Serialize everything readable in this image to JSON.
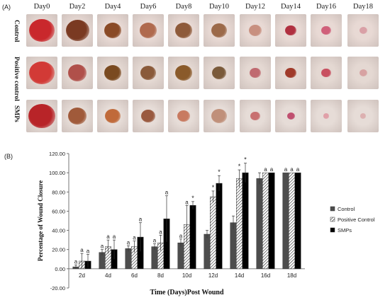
{
  "panel_a": {
    "label": "(A)",
    "days": [
      "Day0",
      "Day2",
      "Day4",
      "Day6",
      "Day8",
      "Day10",
      "Day12",
      "Day14",
      "Day16",
      "Day18"
    ],
    "rows": [
      {
        "label": "Control",
        "skin": "#e8d9d4",
        "wound_colors": [
          "#c9282c",
          "#7a3a22",
          "#8a4a26",
          "#b06a4e",
          "#8e5a3a",
          "#9c6a4a",
          "#c89080",
          "#b03040",
          "#d0607a",
          "#d9a0a6"
        ],
        "wound_sizes": [
          0.8,
          0.75,
          0.55,
          0.55,
          0.55,
          0.5,
          0.4,
          0.35,
          0.3,
          0.25
        ]
      },
      {
        "label": "Positive control",
        "skin": "#e4d8d2",
        "wound_colors": [
          "#d23a36",
          "#b0504a",
          "#7a4a20",
          "#8a5a3a",
          "#8a5a2a",
          "#7a5a3a",
          "#c06a70",
          "#a03a2a",
          "#c85060",
          "#d7a2a2"
        ],
        "wound_sizes": [
          0.8,
          0.6,
          0.55,
          0.5,
          0.55,
          0.45,
          0.35,
          0.35,
          0.3,
          0.25
        ]
      },
      {
        "label": "SMPs",
        "skin": "#e6dcd7",
        "wound_colors": [
          "#b82428",
          "#a05a3a",
          "#c06a3a",
          "#9a5a40",
          "#c87a60",
          "#c0907a",
          "#c87070",
          "#c05070",
          "#e0a0a8",
          "#dcb0b0"
        ],
        "wound_sizes": [
          0.85,
          0.6,
          0.5,
          0.45,
          0.4,
          0.5,
          0.3,
          0.25,
          0.2,
          0.2
        ]
      }
    ]
  },
  "panel_b": {
    "label": "(B)",
    "colors": {
      "control": "#4d4d4d",
      "positive": "#ffffff",
      "smps": "#000000"
    },
    "chart_data": {
      "type": "bar",
      "title": "",
      "xlabel": "Time (Days)Post Wound",
      "ylabel": "Percentage of Wound Closure",
      "ylim": [
        -20,
        120
      ],
      "yticks": [
        "-20.00",
        "0.00",
        "20.00",
        "40.00",
        "60.00",
        "80.00",
        "100.00",
        "120.00"
      ],
      "ytick_values": [
        -20,
        0,
        20,
        40,
        60,
        80,
        100,
        120
      ],
      "categories": [
        "2d",
        "4d",
        "6d",
        "8d",
        "10d",
        "12d",
        "14d",
        "16d",
        "18d"
      ],
      "legend_position": "right",
      "series": [
        {
          "name": "Control",
          "values": [
            2,
            17,
            21,
            23,
            27,
            36,
            48,
            94,
            100
          ],
          "errors": [
            2,
            3,
            3,
            3,
            4,
            4,
            7,
            6,
            0
          ]
        },
        {
          "name": "Positive Control",
          "values": [
            8,
            23,
            23,
            27,
            46,
            75,
            94,
            100,
            100
          ],
          "errors": [
            8,
            7,
            6,
            8,
            20,
            6,
            9,
            0,
            0
          ]
        },
        {
          "name": "SMPs",
          "values": [
            8,
            20,
            33,
            52,
            66,
            89,
            100,
            100,
            100
          ],
          "errors": [
            7,
            10,
            15,
            24,
            4,
            8,
            10,
            0,
            0
          ]
        }
      ],
      "annotations": [
        {
          "category": "2d",
          "labels": [
            "a",
            "a",
            "a"
          ]
        },
        {
          "category": "4d",
          "labels": [
            "a",
            "a",
            "a"
          ]
        },
        {
          "category": "6d",
          "labels": [
            "a",
            "a",
            "a"
          ]
        },
        {
          "category": "8d",
          "labels": [
            "a",
            "a",
            "a"
          ]
        },
        {
          "category": "10d",
          "labels": [
            "a",
            "a",
            "*"
          ]
        },
        {
          "category": "12d",
          "labels": [
            "",
            "*",
            "*"
          ]
        },
        {
          "category": "14d",
          "labels": [
            "",
            "*",
            "*"
          ]
        },
        {
          "category": "16d",
          "labels": [
            "",
            "a",
            "a"
          ]
        },
        {
          "category": "18d",
          "labels": [
            "a",
            "a",
            "a"
          ]
        }
      ]
    }
  }
}
